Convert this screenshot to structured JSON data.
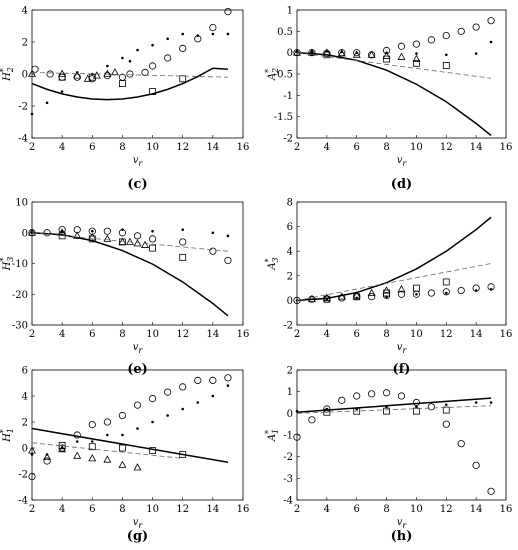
{
  "chart_data": [
    {
      "type": "scatter",
      "caption": "(c)",
      "xlabel": {
        "base": "v",
        "sub": "r"
      },
      "ylabel": {
        "base": "H",
        "sup": "*",
        "sub": "2"
      },
      "xlim": [
        2,
        16
      ],
      "ylim": [
        -4,
        4
      ],
      "xticks": [
        2,
        4,
        6,
        8,
        10,
        12,
        14,
        16
      ],
      "yticks": [
        -4,
        -2,
        0,
        2,
        4
      ],
      "series": [
        {
          "marker": "dot",
          "color": "#000",
          "x": [
            2,
            3,
            4,
            5,
            6,
            7,
            8,
            8.5,
            9,
            10,
            11,
            12,
            13,
            14,
            15
          ],
          "values": [
            -2.5,
            -1.8,
            -1.1,
            0.1,
            0,
            0.5,
            1,
            0.8,
            1.5,
            1.8,
            2.2,
            2.5,
            2.4,
            2.5,
            2.5
          ]
        },
        {
          "marker": "circle",
          "color": "#000",
          "x": [
            2.2,
            3.2,
            4,
            5,
            6,
            7,
            8,
            8.5,
            9.5,
            10,
            11,
            12,
            13,
            14,
            15
          ],
          "values": [
            0.3,
            0,
            -0.2,
            -0.2,
            -0.3,
            -0.1,
            -0.2,
            0,
            0.1,
            0.5,
            1,
            1.6,
            2.2,
            2.9,
            3.9
          ]
        },
        {
          "marker": "triangle",
          "color": "#000",
          "x": [
            2,
            4,
            5,
            5.7,
            6.3,
            7,
            7.5
          ],
          "values": [
            0,
            0,
            -0.1,
            -0.3,
            -0.1,
            0,
            0.1
          ]
        },
        {
          "marker": "square",
          "color": "#000",
          "x": [
            4,
            6,
            8,
            10,
            12
          ],
          "values": [
            -0.2,
            -0.2,
            -0.6,
            -1.1,
            -0.3
          ]
        },
        {
          "marker": "solid-line",
          "color": "#000",
          "x": [
            2,
            3,
            4,
            5,
            6,
            7,
            8,
            9,
            10,
            11,
            12,
            13,
            14,
            15
          ],
          "values": [
            -0.6,
            -0.96,
            -1.24,
            -1.44,
            -1.56,
            -1.6,
            -1.56,
            -1.44,
            -1.24,
            -0.96,
            -0.6,
            -0.16,
            0.36,
            0.3
          ]
        },
        {
          "marker": "dashed-line",
          "color": "#666",
          "x": [
            2,
            15
          ],
          "values": [
            0.1,
            -0.2
          ]
        }
      ]
    },
    {
      "type": "scatter",
      "caption": "(d)",
      "xlabel": {
        "base": "v",
        "sub": "r"
      },
      "ylabel": {
        "base": "A",
        "sup": "*",
        "sub": "2"
      },
      "xlim": [
        2,
        16
      ],
      "ylim": [
        -2,
        1
      ],
      "xticks": [
        2,
        4,
        6,
        8,
        10,
        12,
        14,
        16
      ],
      "yticks": [
        -2,
        -1.5,
        -1,
        -0.5,
        0,
        0.5,
        1
      ],
      "series": [
        {
          "marker": "dot",
          "color": "#000",
          "x": [
            2,
            3,
            4,
            5,
            6,
            8,
            10,
            12,
            14,
            15
          ],
          "values": [
            0.02,
            0.02,
            0.03,
            0.02,
            0,
            0,
            -0.02,
            -0.05,
            -0.02,
            0.25
          ]
        },
        {
          "marker": "circle",
          "color": "#000",
          "x": [
            2,
            3,
            4,
            5,
            6,
            7,
            8,
            9,
            10,
            11,
            12,
            13,
            14,
            15
          ],
          "values": [
            0,
            0,
            -0.02,
            0,
            0,
            -0.05,
            0.05,
            0.15,
            0.2,
            0.3,
            0.4,
            0.5,
            0.6,
            0.75
          ]
        },
        {
          "marker": "triangle",
          "color": "#000",
          "x": [
            2,
            3,
            4,
            5,
            6,
            7,
            8,
            9,
            10
          ],
          "values": [
            0,
            0,
            0,
            -0.02,
            -0.05,
            -0.05,
            -0.08,
            -0.1,
            -0.15
          ]
        },
        {
          "marker": "square",
          "color": "#000",
          "x": [
            4,
            8,
            10,
            12
          ],
          "values": [
            -0.05,
            -0.15,
            -0.25,
            -0.3
          ]
        },
        {
          "marker": "solid-line",
          "color": "#000",
          "x": [
            2,
            4,
            6,
            8,
            10,
            12,
            14,
            15
          ],
          "values": [
            0,
            -0.05,
            -0.18,
            -0.41,
            -0.74,
            -1.15,
            -1.66,
            -1.94
          ]
        },
        {
          "marker": "dashed-line",
          "color": "#666",
          "x": [
            2,
            15
          ],
          "values": [
            0,
            -0.6
          ]
        }
      ]
    },
    {
      "type": "scatter",
      "caption": "(e)",
      "xlabel": {
        "base": "v",
        "sub": "r"
      },
      "ylabel": {
        "base": "H",
        "sup": "*",
        "sub": "3"
      },
      "xlim": [
        2,
        16
      ],
      "ylim": [
        -30,
        10
      ],
      "xticks": [
        2,
        4,
        6,
        8,
        10,
        12,
        14,
        16
      ],
      "yticks": [
        -30,
        -20,
        -10,
        0,
        10
      ],
      "series": [
        {
          "marker": "dot",
          "color": "#000",
          "x": [
            2,
            4,
            6,
            8,
            10,
            12,
            14,
            15
          ],
          "values": [
            0,
            0.5,
            0.5,
            1,
            0.5,
            1,
            0,
            -1
          ]
        },
        {
          "marker": "circle",
          "color": "#000",
          "x": [
            2,
            3,
            4,
            5,
            6,
            7,
            8,
            9,
            10,
            12,
            14,
            15
          ],
          "values": [
            0,
            0,
            1,
            1,
            0.5,
            0.5,
            0,
            -1,
            -2,
            -3,
            -6,
            -9
          ]
        },
        {
          "marker": "triangle",
          "color": "#000",
          "x": [
            2,
            4,
            5,
            6,
            7,
            8,
            8.5,
            9,
            9.5
          ],
          "values": [
            0,
            0,
            -1,
            -1.5,
            -2,
            -3,
            -3,
            -3.5,
            -4
          ]
        },
        {
          "marker": "square",
          "color": "#000",
          "x": [
            4,
            6,
            8,
            10,
            12
          ],
          "values": [
            -1,
            -2,
            -3,
            -5,
            -8
          ]
        },
        {
          "marker": "solid-line",
          "color": "#000",
          "x": [
            2,
            4,
            6,
            8,
            10,
            12,
            14,
            15
          ],
          "values": [
            0,
            -0.64,
            -2.56,
            -5.8,
            -10.2,
            -16,
            -23,
            -27
          ]
        },
        {
          "marker": "dashed-line",
          "color": "#666",
          "x": [
            2,
            15
          ],
          "values": [
            0,
            -6
          ]
        }
      ]
    },
    {
      "type": "scatter",
      "caption": "(f)",
      "xlabel": {
        "base": "v",
        "sub": "r"
      },
      "ylabel": {
        "base": "A",
        "sup": "*",
        "sub": "3"
      },
      "xlim": [
        2,
        16
      ],
      "ylim": [
        -2,
        8
      ],
      "xticks": [
        2,
        4,
        6,
        8,
        10,
        12,
        14,
        16
      ],
      "yticks": [
        -2,
        0,
        2,
        4,
        6,
        8
      ],
      "series": [
        {
          "marker": "dot",
          "color": "#000",
          "x": [
            2,
            4,
            6,
            8,
            10,
            12,
            14,
            15
          ],
          "values": [
            0,
            0.1,
            0.2,
            0.3,
            0.5,
            0.6,
            0.8,
            0.9
          ]
        },
        {
          "marker": "circle",
          "color": "#000",
          "x": [
            2,
            3,
            4,
            5,
            6,
            7,
            8,
            9,
            10,
            11,
            12,
            13,
            14,
            15
          ],
          "values": [
            0,
            0.1,
            0.1,
            0.2,
            0.3,
            0.3,
            0.4,
            0.5,
            0.5,
            0.6,
            0.7,
            0.8,
            1,
            1.1
          ]
        },
        {
          "marker": "triangle",
          "color": "#000",
          "x": [
            3,
            4,
            5,
            6,
            7,
            8,
            9
          ],
          "values": [
            0.1,
            0.2,
            0.3,
            0.4,
            0.6,
            0.8,
            0.9
          ]
        },
        {
          "marker": "square",
          "color": "#000",
          "x": [
            4,
            6,
            8,
            10,
            12
          ],
          "values": [
            0.1,
            0.3,
            0.6,
            1,
            1.5
          ]
        },
        {
          "marker": "solid-line",
          "color": "#000",
          "x": [
            2,
            4,
            6,
            8,
            10,
            12,
            14,
            15
          ],
          "values": [
            0,
            0.16,
            0.64,
            1.44,
            2.56,
            4,
            5.76,
            6.76
          ]
        },
        {
          "marker": "dashed-line",
          "color": "#666",
          "x": [
            2,
            15
          ],
          "values": [
            0,
            3
          ]
        }
      ]
    },
    {
      "type": "scatter",
      "caption": "(g)",
      "xlabel": {
        "base": "v",
        "sub": "r"
      },
      "ylabel": {
        "base": "H",
        "sup": "*",
        "sub": "1"
      },
      "xlim": [
        2,
        16
      ],
      "ylim": [
        -4,
        6
      ],
      "xticks": [
        2,
        4,
        6,
        8,
        10,
        12,
        14,
        16
      ],
      "yticks": [
        -4,
        -2,
        0,
        2,
        4,
        6
      ],
      "series": [
        {
          "marker": "dot",
          "color": "#000",
          "x": [
            2,
            3,
            4,
            5,
            6,
            7,
            8,
            9,
            10,
            11,
            12,
            13,
            14,
            15
          ],
          "values": [
            -0.5,
            -0.5,
            0,
            0.5,
            0.5,
            1,
            1,
            1.5,
            2,
            2.5,
            3,
            3.5,
            4,
            4.8
          ]
        },
        {
          "marker": "circle",
          "color": "#000",
          "x": [
            2,
            3,
            4,
            5,
            6,
            7,
            8,
            9,
            10,
            11,
            12,
            13,
            14,
            15
          ],
          "values": [
            -2.2,
            -1,
            0,
            1,
            1.8,
            2,
            2.5,
            3.3,
            3.8,
            4.3,
            4.7,
            5.2,
            5.2,
            5.4
          ]
        },
        {
          "marker": "triangle",
          "color": "#000",
          "x": [
            2,
            3,
            4,
            5,
            6,
            7,
            8,
            9
          ],
          "values": [
            -0.2,
            -0.7,
            -0.1,
            -0.6,
            -0.8,
            -0.9,
            -1.3,
            -1.5
          ]
        },
        {
          "marker": "square",
          "color": "#000",
          "x": [
            4,
            6,
            8,
            10,
            12
          ],
          "values": [
            0.2,
            0.1,
            0,
            -0.2,
            -0.5
          ]
        },
        {
          "marker": "solid-line",
          "color": "#000",
          "x": [
            2,
            15
          ],
          "values": [
            1.5,
            -1.1
          ]
        },
        {
          "marker": "dashed-line",
          "color": "#666",
          "x": [
            2,
            12
          ],
          "values": [
            0.4,
            -0.8
          ]
        }
      ]
    },
    {
      "type": "scatter",
      "caption": "(h)",
      "xlabel": {
        "base": "v",
        "sub": "r"
      },
      "ylabel": {
        "base": "A",
        "sup": "*",
        "sub": "1"
      },
      "xlim": [
        2,
        16
      ],
      "ylim": [
        -4,
        2
      ],
      "xticks": [
        2,
        4,
        6,
        8,
        10,
        12,
        14,
        16
      ],
      "yticks": [
        -4,
        -3,
        -2,
        -1,
        0,
        1,
        2
      ],
      "series": [
        {
          "marker": "dot",
          "color": "#000",
          "x": [
            2,
            4,
            6,
            8,
            10,
            12,
            14,
            15
          ],
          "values": [
            0.1,
            0.2,
            0.2,
            0.3,
            0.3,
            0.4,
            0.5,
            0.5
          ]
        },
        {
          "marker": "circle",
          "color": "#000",
          "x": [
            2,
            3,
            4,
            5,
            6,
            7,
            8,
            9,
            10,
            11,
            12,
            13,
            14,
            15
          ],
          "values": [
            -1.1,
            -0.3,
            0.2,
            0.6,
            0.8,
            0.9,
            0.95,
            0.8,
            0.5,
            0.3,
            -0.5,
            -1.4,
            -2.4,
            -3.6
          ]
        },
        {
          "marker": "square",
          "color": "#000",
          "x": [
            4,
            6,
            8,
            10,
            12
          ],
          "values": [
            0.05,
            0.1,
            0.1,
            0.1,
            0.15
          ]
        },
        {
          "marker": "solid-line",
          "color": "#000",
          "x": [
            2,
            15
          ],
          "values": [
            0.05,
            0.7
          ]
        },
        {
          "marker": "dashed-line",
          "color": "#666",
          "x": [
            2,
            15
          ],
          "values": [
            0,
            0.35
          ]
        }
      ]
    }
  ]
}
